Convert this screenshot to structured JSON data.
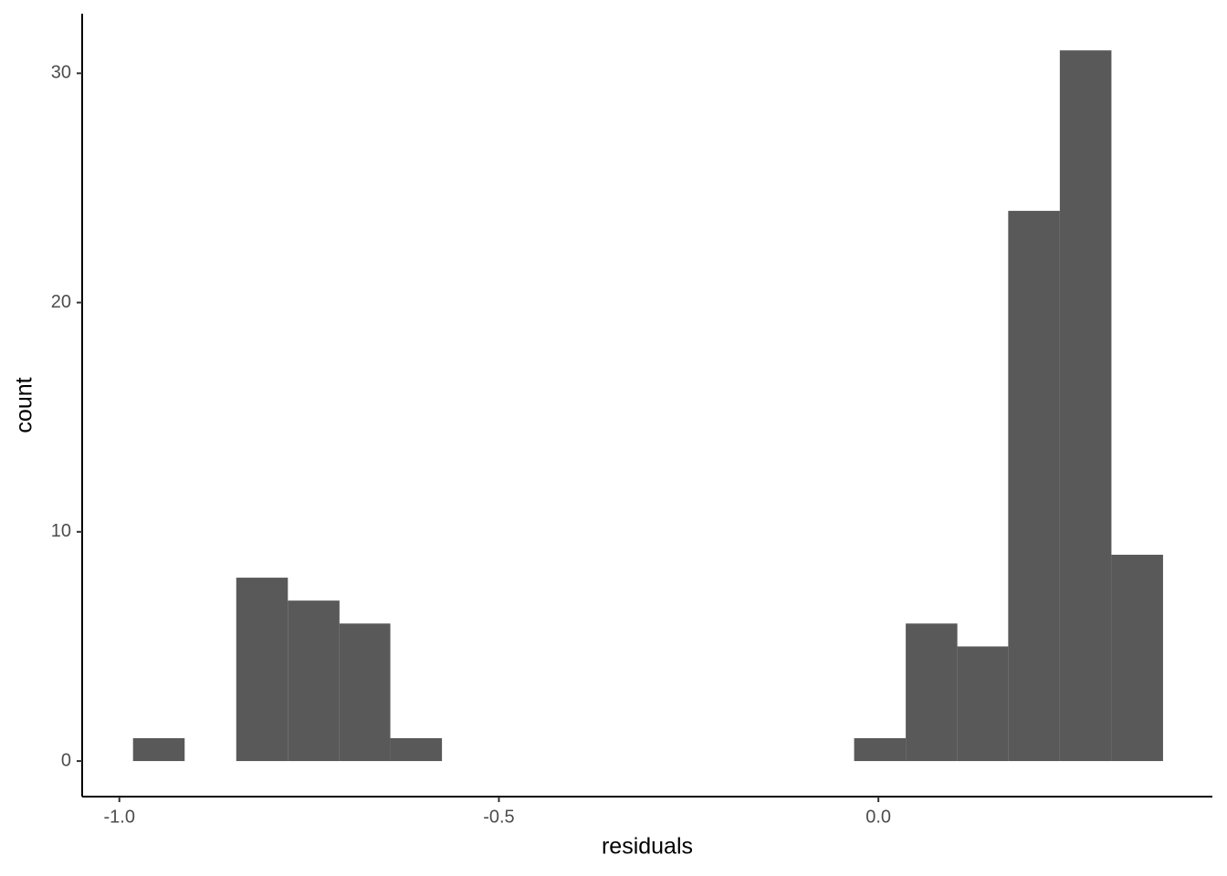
{
  "chart_data": {
    "type": "histogram",
    "x_label": "residuals",
    "y_label": "count",
    "bins": [
      -0.982,
      -0.914,
      -0.846,
      -0.778,
      -0.71,
      -0.643,
      -0.575,
      -0.507,
      -0.439,
      -0.371,
      -0.303,
      -0.236,
      -0.168,
      -0.1,
      -0.032,
      0.036,
      0.104,
      0.171,
      0.239,
      0.307,
      0.375
    ],
    "values": [
      1,
      0,
      8,
      7,
      6,
      1,
      0,
      0,
      0,
      0,
      0,
      0,
      0,
      0,
      1,
      6,
      5,
      24,
      31,
      9
    ],
    "color": "#595959",
    "xlim": [
      -1.049,
      0.44
    ],
    "xticks": [
      {
        "value": -1.0,
        "label": "-1.0"
      },
      {
        "value": -0.5,
        "label": "-0.5"
      },
      {
        "value": 0.0,
        "label": "0.0"
      }
    ],
    "ylim": [
      -1.55,
      32.6
    ],
    "yticks": [
      0,
      10,
      20,
      30
    ],
    "grid": false
  }
}
